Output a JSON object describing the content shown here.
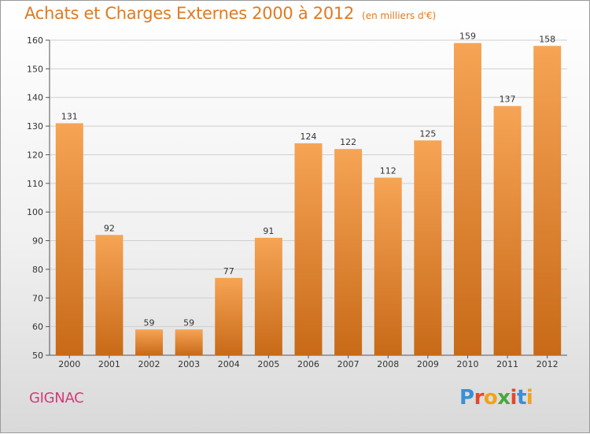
{
  "title": "Achats et Charges Externes 2000 à 2012",
  "subtitle": "(en milliers d'€)",
  "commune": "GIGNAC",
  "logo_text": "Proxiti",
  "colors": {
    "title": "#e07a20",
    "commune": "#d63a78",
    "bar_top": "#f6a455",
    "bar_bottom": "#c86a18",
    "logo": [
      "#3a8fd6",
      "#e8472a",
      "#f2a21a",
      "#4aa83a",
      "#e8472a",
      "#3a8fd6",
      "#f2a21a"
    ]
  },
  "chart_data": {
    "type": "bar",
    "title": "Achats et Charges Externes 2000 à 2012",
    "subtitle": "(en milliers d'€)",
    "categories": [
      "2000",
      "2001",
      "2002",
      "2003",
      "2004",
      "2005",
      "2006",
      "2007",
      "2008",
      "2009",
      "2010",
      "2011",
      "2012"
    ],
    "values": [
      131,
      92,
      59,
      59,
      77,
      91,
      124,
      122,
      112,
      125,
      159,
      137,
      158
    ],
    "data_labels": [
      "131",
      "92",
      "59",
      "59",
      "77",
      "91",
      "124",
      "122",
      "112",
      "125",
      "159",
      "137",
      "158"
    ],
    "ylim": [
      50,
      160
    ],
    "yticks": [
      50,
      60,
      70,
      80,
      90,
      100,
      110,
      120,
      130,
      140,
      150,
      160
    ],
    "grid": true,
    "legend": "none"
  }
}
